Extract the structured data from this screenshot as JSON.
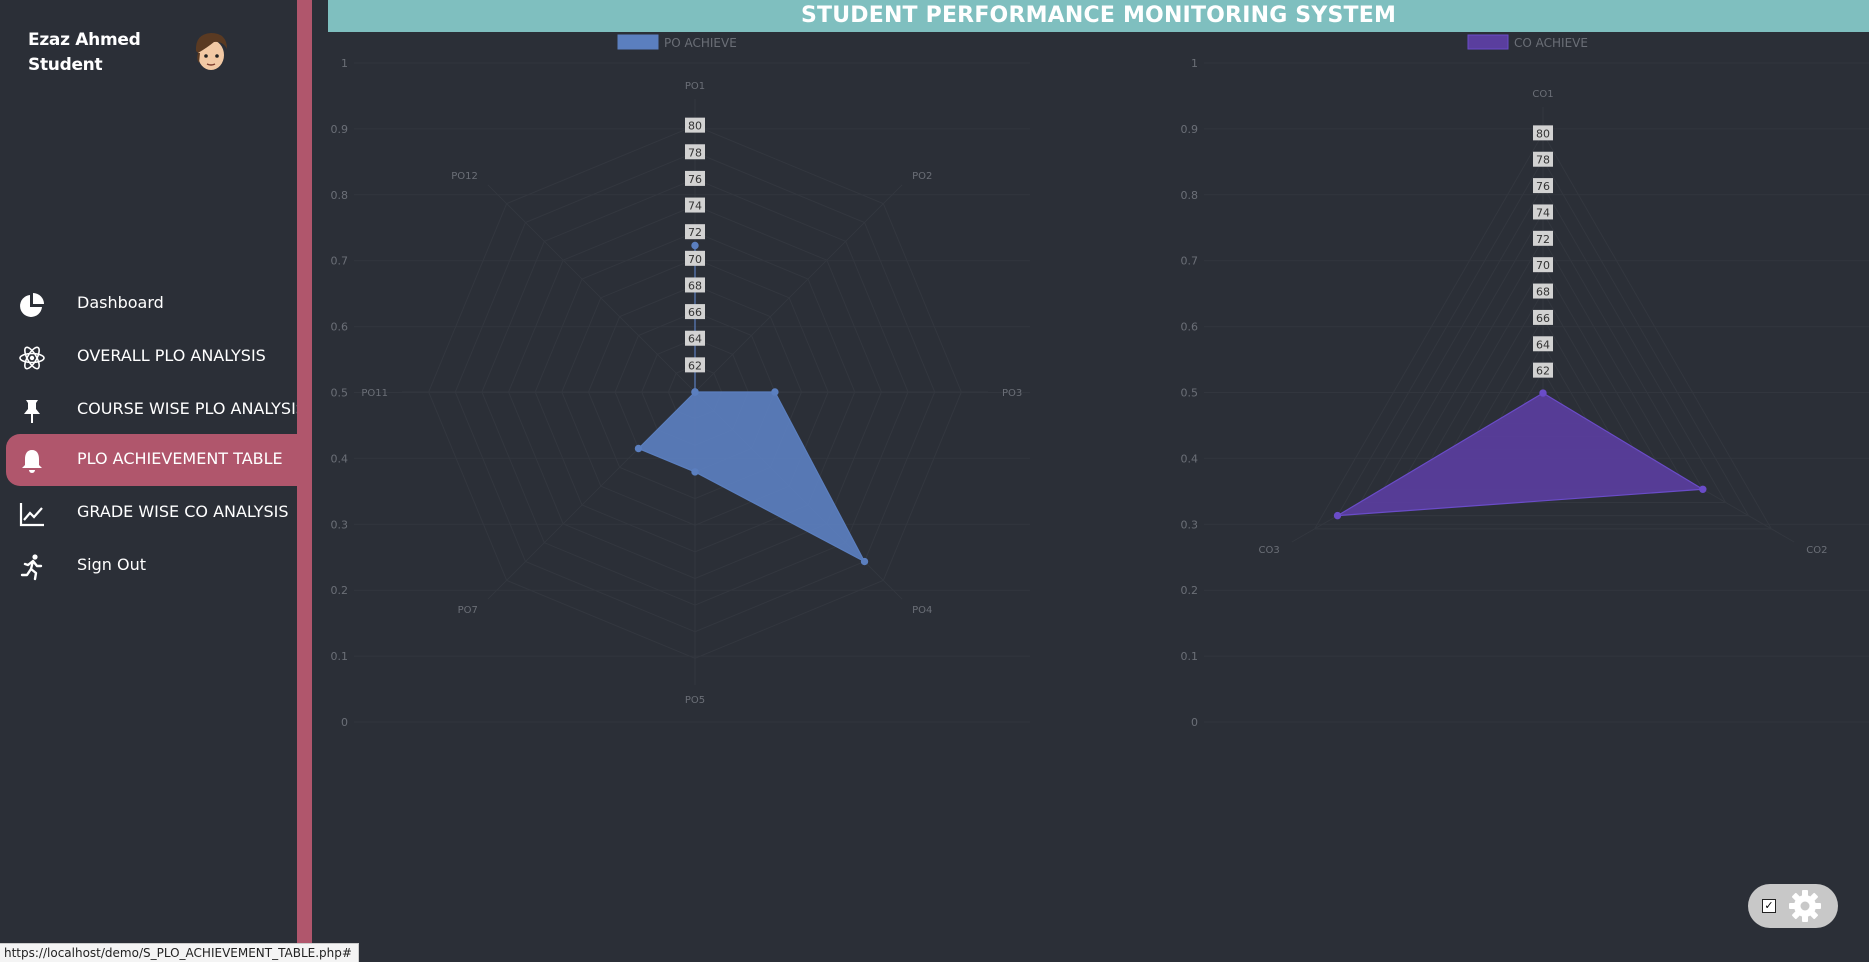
{
  "user": {
    "name": "Ezaz Ahmed",
    "role": "Student"
  },
  "header": {
    "title": "STUDENT PERFORMANCE MONITORING SYSTEM"
  },
  "nav": {
    "items": [
      {
        "label": "Dashboard",
        "icon": "pie-chart-icon",
        "active": false
      },
      {
        "label": "OVERALL PLO ANALYSIS",
        "icon": "atom-icon",
        "active": false
      },
      {
        "label": "COURSE WISE PLO ANALYSIS",
        "icon": "pin-icon",
        "active": false
      },
      {
        "label": "PLO ACHIEVEMENT TABLE",
        "icon": "bell-icon",
        "active": true
      },
      {
        "label": "GRADE WISE CO ANALYSIS",
        "icon": "line-chart-icon",
        "active": false
      },
      {
        "label": "Sign Out",
        "icon": "running-person-icon",
        "active": false
      }
    ]
  },
  "status_bar": {
    "url": "https://localhost/demo/S_PLO_ACHIEVEMENT_TABLE.php#"
  },
  "colors": {
    "accent": "#b0566c",
    "header": "#7fbfbf",
    "po_series": "#5b7fbf",
    "co_series": "#5a3e9e",
    "background": "#2b2f37"
  },
  "chart_data": [
    {
      "type": "radar",
      "legend": "PO ACHIEVE",
      "legend_position": "top",
      "y_axis_ticks": [
        "0",
        "0.1",
        "0.2",
        "0.3",
        "0.4",
        "0.5",
        "0.6",
        "0.7",
        "0.8",
        "0.9",
        "1"
      ],
      "y_range": [
        0,
        1
      ],
      "radial_range": [
        60,
        82
      ],
      "radial_ticks": [
        "62",
        "64",
        "66",
        "68",
        "70",
        "72",
        "74",
        "76",
        "78",
        "80"
      ],
      "labels": [
        "PO1",
        "PO2",
        "PO3",
        "PO4",
        "PO5",
        "PO7",
        "PO11",
        "PO12"
      ],
      "series": [
        {
          "name": "PO ACHIEVE",
          "values": [
            71,
            60,
            66,
            78,
            66,
            66,
            60,
            60
          ]
        }
      ]
    },
    {
      "type": "radar",
      "legend": "CO ACHIEVE",
      "legend_position": "top",
      "y_axis_ticks": [
        "0",
        "0.1",
        "0.2",
        "0.3",
        "0.4",
        "0.5",
        "0.6",
        "0.7",
        "0.8",
        "0.9",
        "1"
      ],
      "y_range": [
        0,
        1
      ],
      "radial_range": [
        60,
        82
      ],
      "radial_ticks": [
        "62",
        "64",
        "66",
        "68",
        "70",
        "72",
        "74",
        "76",
        "78",
        "80"
      ],
      "labels": [
        "CO1",
        "CO2",
        "CO3"
      ],
      "series": [
        {
          "name": "CO ACHIEVE",
          "values": [
            60.3,
            74,
            78
          ]
        }
      ]
    }
  ]
}
